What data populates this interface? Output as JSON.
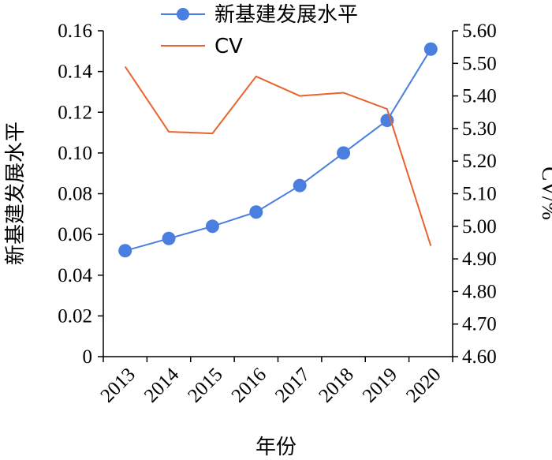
{
  "chart_data": {
    "type": "line",
    "x": [
      "2013",
      "2014",
      "2015",
      "2016",
      "2017",
      "2018",
      "2019",
      "2020"
    ],
    "xlabel": "年份",
    "ylabel_left": "新基建发展水平",
    "ylabel_right": "CV/%",
    "ylim_left": [
      0,
      0.16
    ],
    "ylim_right": [
      4.6,
      5.6
    ],
    "yticks_left": [
      "0",
      "0.02",
      "0.04",
      "0.06",
      "0.08",
      "0.10",
      "0.12",
      "0.14",
      "0.16"
    ],
    "yticks_right": [
      "4.60",
      "4.70",
      "4.80",
      "4.90",
      "5.00",
      "5.10",
      "5.20",
      "5.30",
      "5.40",
      "5.50",
      "5.60"
    ],
    "series": [
      {
        "name": "新基建发展水平",
        "axis": "left",
        "marker": "circle",
        "color": "#4a7fe0",
        "values": [
          0.052,
          0.058,
          0.064,
          0.071,
          0.084,
          0.1,
          0.116,
          0.151
        ]
      },
      {
        "name": "CV",
        "axis": "right",
        "marker": "none",
        "color": "#e8642c",
        "values": [
          5.49,
          5.29,
          5.285,
          5.46,
          5.4,
          5.41,
          5.36,
          4.94
        ]
      }
    ],
    "legend_position": "top"
  }
}
